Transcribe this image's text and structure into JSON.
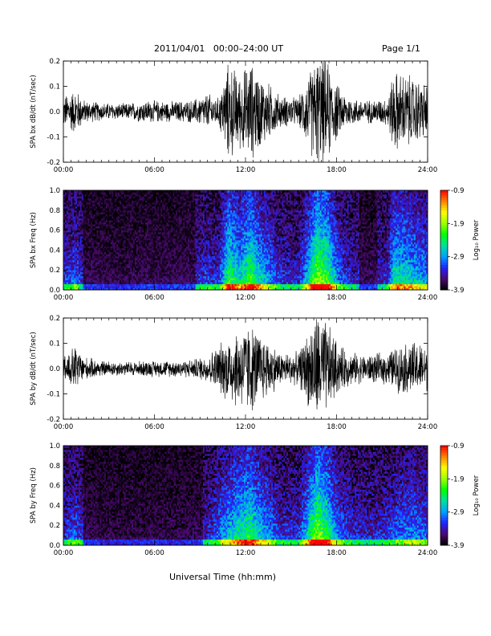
{
  "header": {
    "date_range": "2011/04/01   00:00–24:00 UT",
    "page": "Page 1/1"
  },
  "footer": {
    "xlabel": "Universal Time (hh:mm)"
  },
  "colors": {
    "trace": "#000000",
    "background": "#ffffff",
    "colormap": [
      "#000000",
      "#4a0a6e",
      "#2222ff",
      "#00a0ff",
      "#00e0a0",
      "#00ff00",
      "#a0ff00",
      "#ffff00",
      "#ff8000",
      "#ff0000"
    ]
  },
  "chart_data": [
    {
      "type": "line",
      "ylabel": "SPA bx dB/dt (nT/sec)",
      "x_ticks": [
        "00:00",
        "06:00",
        "12:00",
        "18:00",
        "24:00"
      ],
      "y_ticks": [
        "0.2",
        "0.1",
        "0.0",
        "-0.1",
        "-0.2"
      ],
      "xlim": [
        0,
        24
      ],
      "ylim": [
        -0.2,
        0.2
      ],
      "activity": [
        [
          0,
          0.07
        ],
        [
          0.8,
          0.1
        ],
        [
          1.4,
          0.05
        ],
        [
          2.5,
          0.04
        ],
        [
          4,
          0.035
        ],
        [
          5.5,
          0.05
        ],
        [
          7,
          0.045
        ],
        [
          8.5,
          0.05
        ],
        [
          9.5,
          0.08
        ],
        [
          10.2,
          0.06
        ],
        [
          10.9,
          0.22
        ],
        [
          11.6,
          0.16
        ],
        [
          12.3,
          0.22
        ],
        [
          13,
          0.16
        ],
        [
          13.6,
          0.12
        ],
        [
          14.3,
          0.07
        ],
        [
          15.5,
          0.06
        ],
        [
          16.7,
          0.25
        ],
        [
          17.4,
          0.22
        ],
        [
          18.2,
          0.1
        ],
        [
          19,
          0.06
        ],
        [
          20,
          0.05
        ],
        [
          21.3,
          0.06
        ],
        [
          21.8,
          0.18
        ],
        [
          22.8,
          0.16
        ],
        [
          24,
          0.12
        ]
      ]
    },
    {
      "type": "heatmap",
      "ylabel": "SPA bx Freq (Hz)",
      "x_ticks": [
        "00:00",
        "06:00",
        "12:00",
        "18:00",
        "24:00"
      ],
      "y_ticks": [
        "1.0",
        "0.8",
        "0.6",
        "0.4",
        "0.2",
        "0.0"
      ],
      "xlim": [
        0,
        24
      ],
      "ylim": [
        0,
        1.0
      ],
      "colorbar_label": "Log₁₀ Power",
      "colorbar_ticks": [
        "-0.9",
        "-1.9",
        "-2.9",
        "-3.9"
      ],
      "colorbar_range": [
        -3.9,
        -0.9
      ]
    },
    {
      "type": "line",
      "ylabel": "SPA by dB/dt (nT/sec)",
      "x_ticks": [
        "00:00",
        "06:00",
        "12:00",
        "18:00",
        "24:00"
      ],
      "y_ticks": [
        "0.2",
        "0.1",
        "0.0",
        "-0.1",
        "-0.2"
      ],
      "xlim": [
        0,
        24
      ],
      "ylim": [
        -0.2,
        0.2
      ],
      "activity": [
        [
          0,
          0.06
        ],
        [
          0.8,
          0.1
        ],
        [
          1.4,
          0.05
        ],
        [
          2.5,
          0.035
        ],
        [
          4,
          0.03
        ],
        [
          5.5,
          0.035
        ],
        [
          7,
          0.035
        ],
        [
          8.5,
          0.04
        ],
        [
          9.5,
          0.06
        ],
        [
          10.2,
          0.1
        ],
        [
          10.9,
          0.15
        ],
        [
          11.6,
          0.18
        ],
        [
          12.3,
          0.2
        ],
        [
          13,
          0.15
        ],
        [
          13.6,
          0.12
        ],
        [
          14.3,
          0.07
        ],
        [
          15.5,
          0.07
        ],
        [
          16.7,
          0.25
        ],
        [
          17.4,
          0.2
        ],
        [
          18.2,
          0.1
        ],
        [
          19,
          0.07
        ],
        [
          20,
          0.06
        ],
        [
          21.3,
          0.07
        ],
        [
          22,
          0.1
        ],
        [
          23,
          0.12
        ],
        [
          24,
          0.1
        ]
      ]
    },
    {
      "type": "heatmap",
      "ylabel": "SPA by Freq (Hz)",
      "x_ticks": [
        "00:00",
        "06:00",
        "12:00",
        "18:00",
        "24:00"
      ],
      "y_ticks": [
        "1.0",
        "0.8",
        "0.6",
        "0.4",
        "0.2",
        "0.0"
      ],
      "xlim": [
        0,
        24
      ],
      "ylim": [
        0,
        1.0
      ],
      "colorbar_label": "Log₁₀ Power",
      "colorbar_ticks": [
        "-0.9",
        "-1.9",
        "-2.9",
        "-3.9"
      ],
      "colorbar_range": [
        -3.9,
        -0.9
      ]
    }
  ]
}
